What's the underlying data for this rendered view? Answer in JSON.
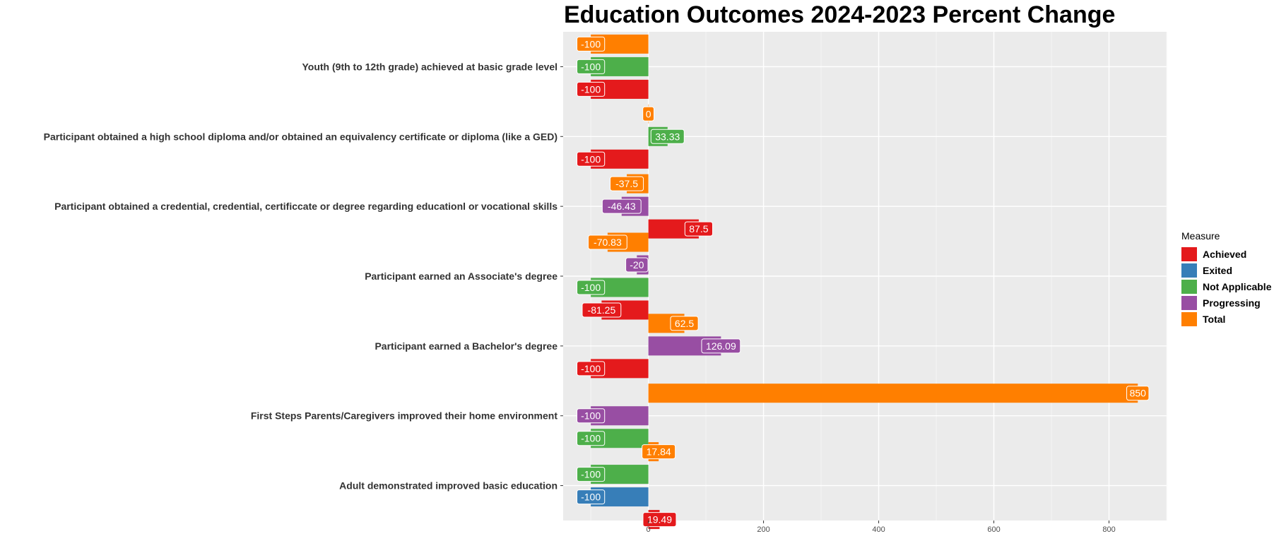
{
  "chart_data": {
    "type": "bar",
    "orientation": "horizontal",
    "title": "Education Outcomes 2024-2023 Percent Change",
    "xlabel": "",
    "ylabel": "",
    "xlim": [
      -148,
      900
    ],
    "xticks": [
      0,
      200,
      400,
      600,
      800
    ],
    "grid": true,
    "legend_title": "Measure",
    "legend_position": "right",
    "measures": [
      {
        "name": "Achieved",
        "color": "#E41A1C"
      },
      {
        "name": "Exited",
        "color": "#377EB8"
      },
      {
        "name": "Not Applicable",
        "color": "#4DAF4A"
      },
      {
        "name": "Progressing",
        "color": "#984EA3"
      },
      {
        "name": "Total",
        "color": "#FF7F00"
      }
    ],
    "categories": [
      {
        "label": "Youth (9th to 12th grade) achieved at basic grade level",
        "bars": [
          {
            "measure": "Total",
            "value": -100
          },
          {
            "measure": "Not Applicable",
            "value": -100
          },
          {
            "measure": "Achieved",
            "value": -100
          }
        ]
      },
      {
        "label": "Participant obtained a high school diploma and/or obtained an equivalency certificate or diploma (like a GED)",
        "bars": [
          {
            "measure": "Total",
            "value": 0
          },
          {
            "measure": "Not Applicable",
            "value": 33.33
          },
          {
            "measure": "Achieved",
            "value": -100
          }
        ]
      },
      {
        "label": "Participant obtained a credential, credential, certificcate or degree regarding educationl or vocational skills",
        "bars": [
          {
            "measure": "Total",
            "value": -37.5
          },
          {
            "measure": "Progressing",
            "value": -46.43
          },
          {
            "measure": "Achieved",
            "value": 87.5
          }
        ]
      },
      {
        "label": "Participant earned an Associate's degree",
        "bars": [
          {
            "measure": "Total",
            "value": -70.83
          },
          {
            "measure": "Progressing",
            "value": -20
          },
          {
            "measure": "Not Applicable",
            "value": -100
          },
          {
            "measure": "Achieved",
            "value": -81.25
          }
        ]
      },
      {
        "label": "Participant earned a Bachelor's degree",
        "bars": [
          {
            "measure": "Total",
            "value": 62.5
          },
          {
            "measure": "Progressing",
            "value": 126.09
          },
          {
            "measure": "Achieved",
            "value": -100
          }
        ]
      },
      {
        "label": "First Steps Parents/Caregivers improved their home environment",
        "bars": [
          {
            "measure": "Total",
            "value": 850
          },
          {
            "measure": "Progressing",
            "value": -100
          },
          {
            "measure": "Not Applicable",
            "value": -100
          }
        ]
      },
      {
        "label": "Adult demonstrated improved basic education",
        "bars": [
          {
            "measure": "Total",
            "value": 17.84
          },
          {
            "measure": "Not Applicable",
            "value": -100
          },
          {
            "measure": "Exited",
            "value": -100
          },
          {
            "measure": "Achieved",
            "value": 19.49
          }
        ]
      }
    ]
  }
}
